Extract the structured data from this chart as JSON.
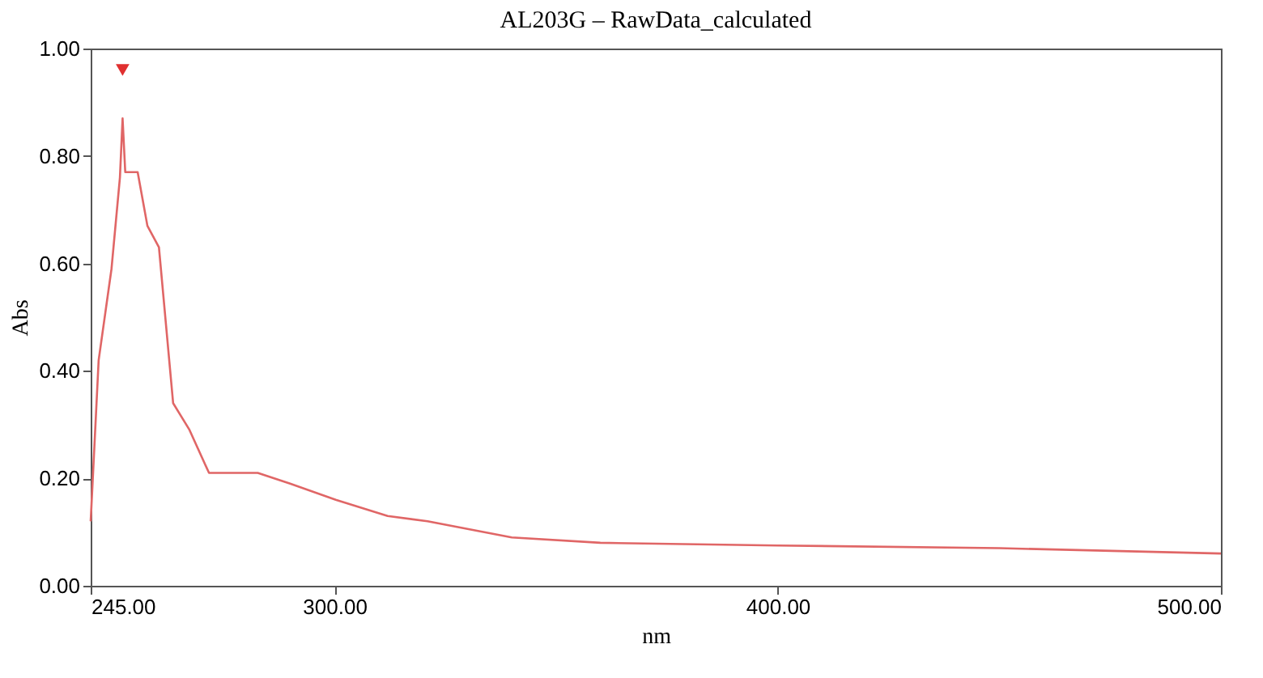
{
  "chart_data": {
    "type": "line",
    "title": "AL203G – RawData_calculated",
    "xlabel": "nm",
    "ylabel": "Abs",
    "xlim": [
      245,
      500
    ],
    "ylim": [
      0,
      1
    ],
    "xticks": [
      {
        "value": 245,
        "label": "245.00"
      },
      {
        "value": 300,
        "label": "300.00"
      },
      {
        "value": 400,
        "label": "400.00"
      },
      {
        "value": 500,
        "label": "500.00"
      }
    ],
    "yticks": [
      {
        "value": 0,
        "label": "0.00"
      },
      {
        "value": 0.2,
        "label": "0.20"
      },
      {
        "value": 0.4,
        "label": "0.40"
      },
      {
        "value": 0.6,
        "label": "0.60"
      },
      {
        "value": 0.8,
        "label": "0.80"
      },
      {
        "value": 1,
        "label": "1.00"
      }
    ],
    "grid": false,
    "series": [
      {
        "color": "#e06666",
        "marker": "none",
        "line_style": "solid",
        "x": [
          245,
          246.8,
          249.7,
          251.6,
          252.2,
          252.8,
          255.6,
          257.8,
          260.4,
          263.6,
          267.3,
          271.7,
          282.7,
          290,
          300.3,
          312,
          321,
          340,
          360,
          400,
          450,
          500
        ],
        "values": [
          0.12,
          0.42,
          0.59,
          0.76,
          0.87,
          0.77,
          0.77,
          0.67,
          0.63,
          0.34,
          0.29,
          0.21,
          0.21,
          0.19,
          0.16,
          0.13,
          0.12,
          0.09,
          0.08,
          0.075,
          0.07,
          0.06
        ]
      },
      {
        "type": "scatter",
        "color": "#e03030",
        "marker": "triangle",
        "x": [
          252.2
        ],
        "values": [
          0.96
        ]
      }
    ]
  }
}
